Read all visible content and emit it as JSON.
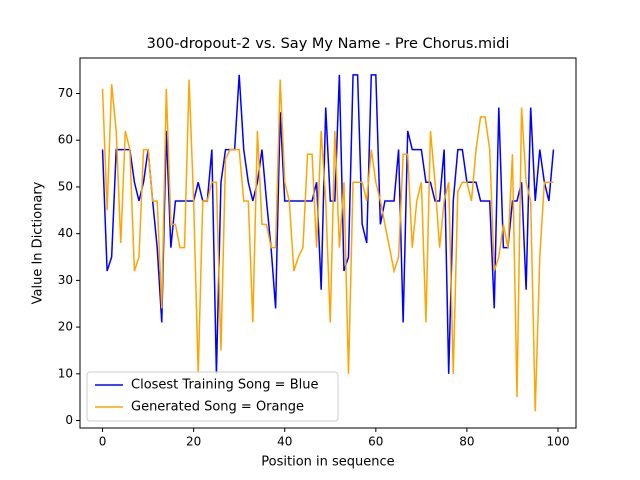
{
  "chart_data": {
    "type": "line",
    "title": "300-dropout-2 vs. Say My Name - Pre Chorus.midi",
    "x_label": "Position in sequence",
    "y_label": "Value In Dictionary",
    "x": [
      0,
      1,
      2,
      3,
      4,
      5,
      6,
      7,
      8,
      9,
      10,
      11,
      12,
      13,
      14,
      15,
      16,
      17,
      18,
      19,
      20,
      21,
      22,
      23,
      24,
      25,
      26,
      27,
      28,
      29,
      30,
      31,
      32,
      33,
      34,
      35,
      36,
      37,
      38,
      39,
      40,
      41,
      42,
      43,
      44,
      45,
      46,
      47,
      48,
      49,
      50,
      51,
      52,
      53,
      54,
      55,
      56,
      57,
      58,
      59,
      60,
      61,
      62,
      63,
      64,
      65,
      66,
      67,
      68,
      69,
      70,
      71,
      72,
      73,
      74,
      75,
      76,
      77,
      78,
      79,
      80,
      81,
      82,
      83,
      84,
      85,
      86,
      87,
      88,
      89,
      90,
      91,
      92,
      93,
      94,
      95,
      96,
      97,
      98,
      99
    ],
    "series": [
      {
        "name": "Closest Training Song = Blue",
        "color": "#0000ff",
        "values": [
          58,
          32,
          35,
          58,
          58,
          58,
          58,
          51,
          47,
          51,
          58,
          47,
          37,
          21,
          62,
          37,
          47,
          47,
          47,
          47,
          47,
          51,
          47,
          47,
          58,
          10,
          51,
          58,
          58,
          58,
          74,
          58,
          51,
          47,
          51,
          58,
          47,
          37,
          24,
          66,
          47,
          47,
          47,
          47,
          47,
          47,
          47,
          51,
          28,
          67,
          47,
          47,
          74,
          32,
          35,
          74,
          74,
          42,
          38,
          74,
          74,
          42,
          47,
          47,
          47,
          58,
          21,
          62,
          58,
          58,
          58,
          51,
          51,
          47,
          47,
          58,
          10,
          47,
          58,
          58,
          51,
          51,
          51,
          47,
          47,
          47,
          24,
          67,
          37,
          37,
          47,
          47,
          51,
          28,
          67,
          47,
          58,
          51,
          47,
          58
        ]
      },
      {
        "name": "Generated Song = Orange",
        "color": "#ffa500",
        "values": [
          71,
          45,
          72,
          62,
          38,
          62,
          58,
          32,
          35,
          58,
          58,
          47,
          47,
          24,
          71,
          42,
          42,
          37,
          37,
          73,
          47,
          10,
          47,
          47,
          51,
          51,
          15,
          56,
          58,
          58,
          58,
          47,
          47,
          21,
          62,
          42,
          42,
          37,
          37,
          73,
          51,
          47,
          32,
          35,
          37,
          57,
          57,
          37,
          62,
          47,
          21,
          62,
          37,
          51,
          10,
          51,
          51,
          51,
          47,
          58,
          51,
          47,
          42,
          37,
          32,
          35,
          57,
          57,
          37,
          47,
          51,
          21,
          62,
          51,
          37,
          47,
          51,
          10,
          49,
          51,
          51,
          47,
          58,
          65,
          65,
          58,
          32,
          35,
          42,
          37,
          57,
          5,
          67,
          51,
          47,
          2,
          35,
          51,
          51,
          51
        ]
      }
    ],
    "xlim": [
      -4.95,
      103.95
    ],
    "ylim": [
      -1.6,
      77.6
    ],
    "xticks": [
      0,
      20,
      40,
      60,
      80,
      100
    ],
    "yticks": [
      0,
      10,
      20,
      30,
      40,
      50,
      60,
      70
    ],
    "legend": "lower left"
  }
}
